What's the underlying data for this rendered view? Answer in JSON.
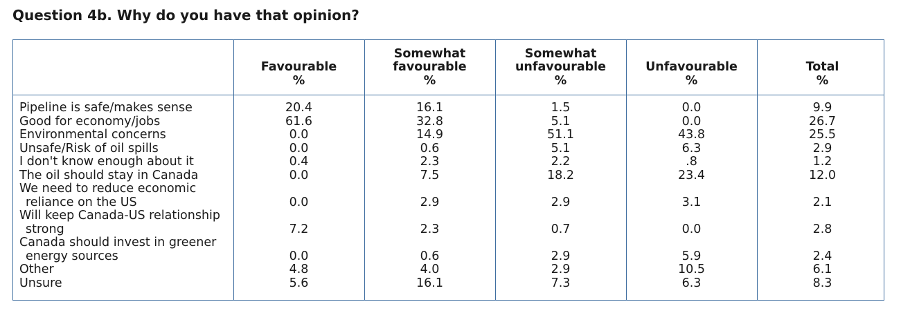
{
  "title": "Question 4b. Why do you have that opinion?",
  "columns": [
    {
      "line1": "",
      "line2": "Favourable",
      "unit": "%"
    },
    {
      "line1": "Somewhat",
      "line2": "favourable",
      "unit": "%"
    },
    {
      "line1": "Somewhat",
      "line2": "unfavourable",
      "unit": "%"
    },
    {
      "line1": "",
      "line2": "Unfavourable",
      "unit": "%"
    },
    {
      "line1": "",
      "line2": "Total",
      "unit": "%"
    }
  ],
  "rows": [
    {
      "label1": "Pipeline is safe/makes sense",
      "label2": "",
      "values": [
        "20.4",
        "16.1",
        "1.5",
        "0.0",
        "9.9"
      ]
    },
    {
      "label1": "Good for economy/jobs",
      "label2": "",
      "values": [
        "61.6",
        "32.8",
        "5.1",
        "0.0",
        "26.7"
      ]
    },
    {
      "label1": "Environmental concerns",
      "label2": "",
      "values": [
        "0.0",
        "14.9",
        "51.1",
        "43.8",
        "25.5"
      ]
    },
    {
      "label1": "Unsafe/Risk of oil spills",
      "label2": "",
      "values": [
        "0.0",
        "0.6",
        "5.1",
        "6.3",
        "2.9"
      ]
    },
    {
      "label1": "I don't know enough about it",
      "label2": "",
      "values": [
        "0.4",
        "2.3",
        "2.2",
        ".8",
        "1.2"
      ]
    },
    {
      "label1": "The oil should stay in Canada",
      "label2": "",
      "values": [
        "0.0",
        "7.5",
        "18.2",
        "23.4",
        "12.0"
      ]
    },
    {
      "label1": "We need to reduce economic",
      "label2": "reliance on the US",
      "values": [
        "0.0",
        "2.9",
        "2.9",
        "3.1",
        "2.1"
      ]
    },
    {
      "label1": "Will keep Canada-US relationship",
      "label2": "strong",
      "values": [
        "7.2",
        "2.3",
        "0.7",
        "0.0",
        "2.8"
      ]
    },
    {
      "label1": "Canada should invest in greener",
      "label2": "energy sources",
      "values": [
        "0.0",
        "0.6",
        "2.9",
        "5.9",
        "2.4"
      ]
    },
    {
      "label1": "Other",
      "label2": "",
      "values": [
        "4.8",
        "4.0",
        "2.9",
        "10.5",
        "6.1"
      ]
    },
    {
      "label1": "Unsure",
      "label2": "",
      "values": [
        "5.6",
        "16.1",
        "7.3",
        "6.3",
        "8.3"
      ]
    }
  ]
}
